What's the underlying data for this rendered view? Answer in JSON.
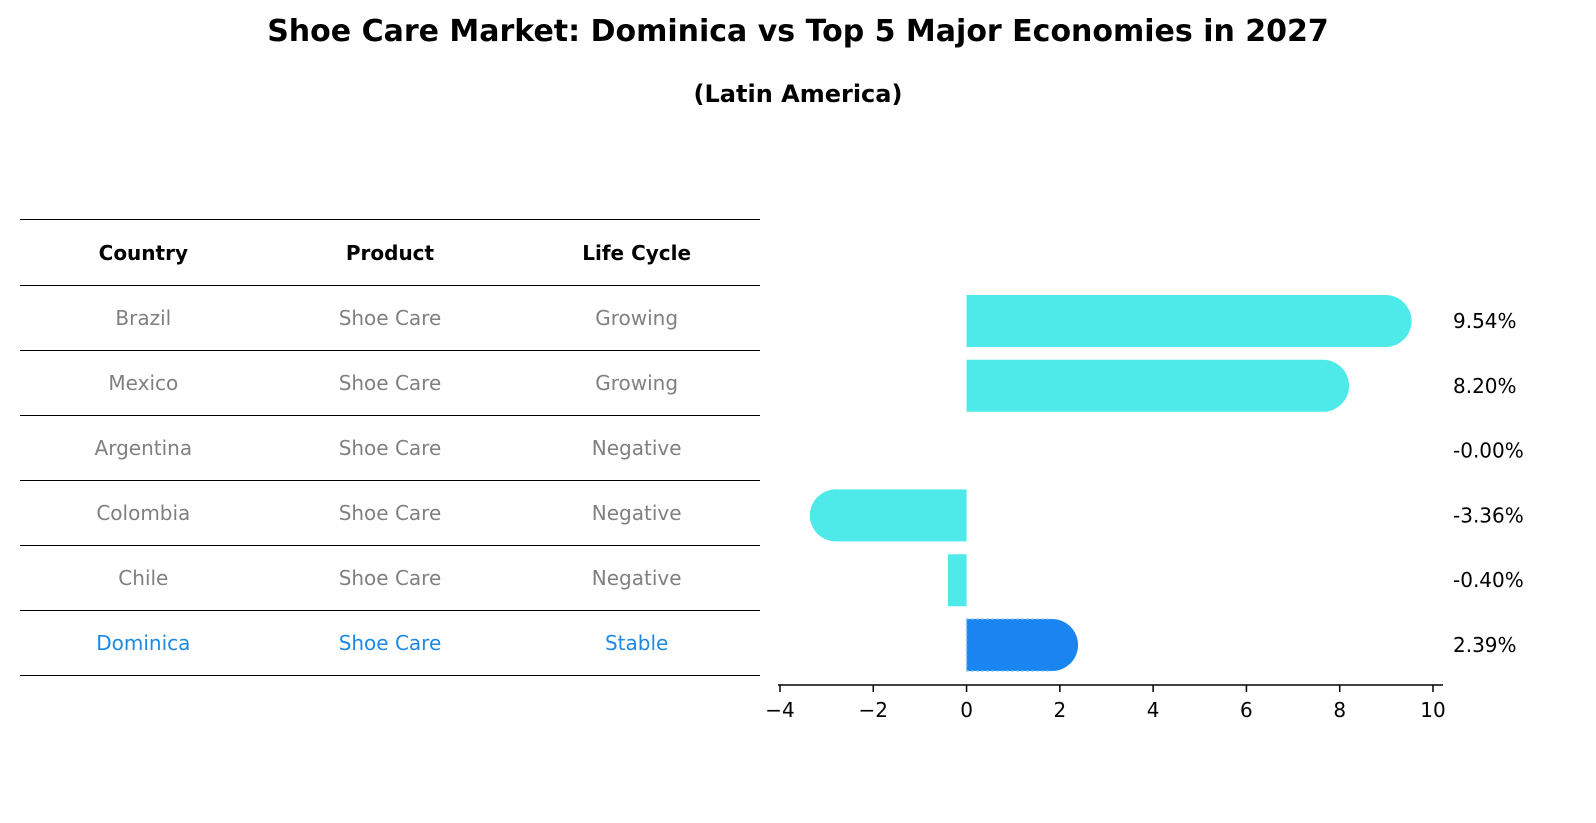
{
  "title": "Shoe Care Market: Dominica vs Top 5 Major Economies in 2027",
  "subtitle": "(Latin America)",
  "table": {
    "headers": [
      "Country",
      "Product",
      "Life Cycle"
    ],
    "rows": [
      [
        "Brazil",
        "Shoe Care",
        "Growing"
      ],
      [
        "Mexico",
        "Shoe Care",
        "Growing"
      ],
      [
        "Argentina",
        "Shoe Care",
        "Negative"
      ],
      [
        "Colombia",
        "Shoe Care",
        "Negative"
      ],
      [
        "Chile",
        "Shoe Care",
        "Negative"
      ],
      [
        "Dominica",
        "Shoe Care",
        "Stable"
      ]
    ],
    "highlight_row": 5,
    "text_color": "#808080",
    "highlight_color": "#1e88e5"
  },
  "chart_data": {
    "type": "bar",
    "orientation": "horizontal",
    "categories": [
      "Brazil",
      "Mexico",
      "Argentina",
      "Colombia",
      "Chile",
      "Dominica"
    ],
    "values": [
      9.54,
      8.2,
      -0.0,
      -3.36,
      -0.4,
      2.39
    ],
    "value_labels": [
      "9.54%",
      "8.20%",
      "-0.00%",
      "-3.36%",
      "-0.40%",
      "2.39%"
    ],
    "xlim": [
      -4,
      10
    ],
    "xticks": [
      -4,
      -2,
      0,
      2,
      4,
      6,
      8,
      10
    ],
    "xtick_labels": [
      "−4",
      "−2",
      "0",
      "2",
      "4",
      "6",
      "8",
      "10"
    ],
    "highlight_index": 5,
    "colors": {
      "bar": "#4eeaea",
      "highlight": "#1a85f0",
      "axis": "#000000",
      "label": "#000000"
    },
    "grid": false,
    "legend": "none"
  }
}
